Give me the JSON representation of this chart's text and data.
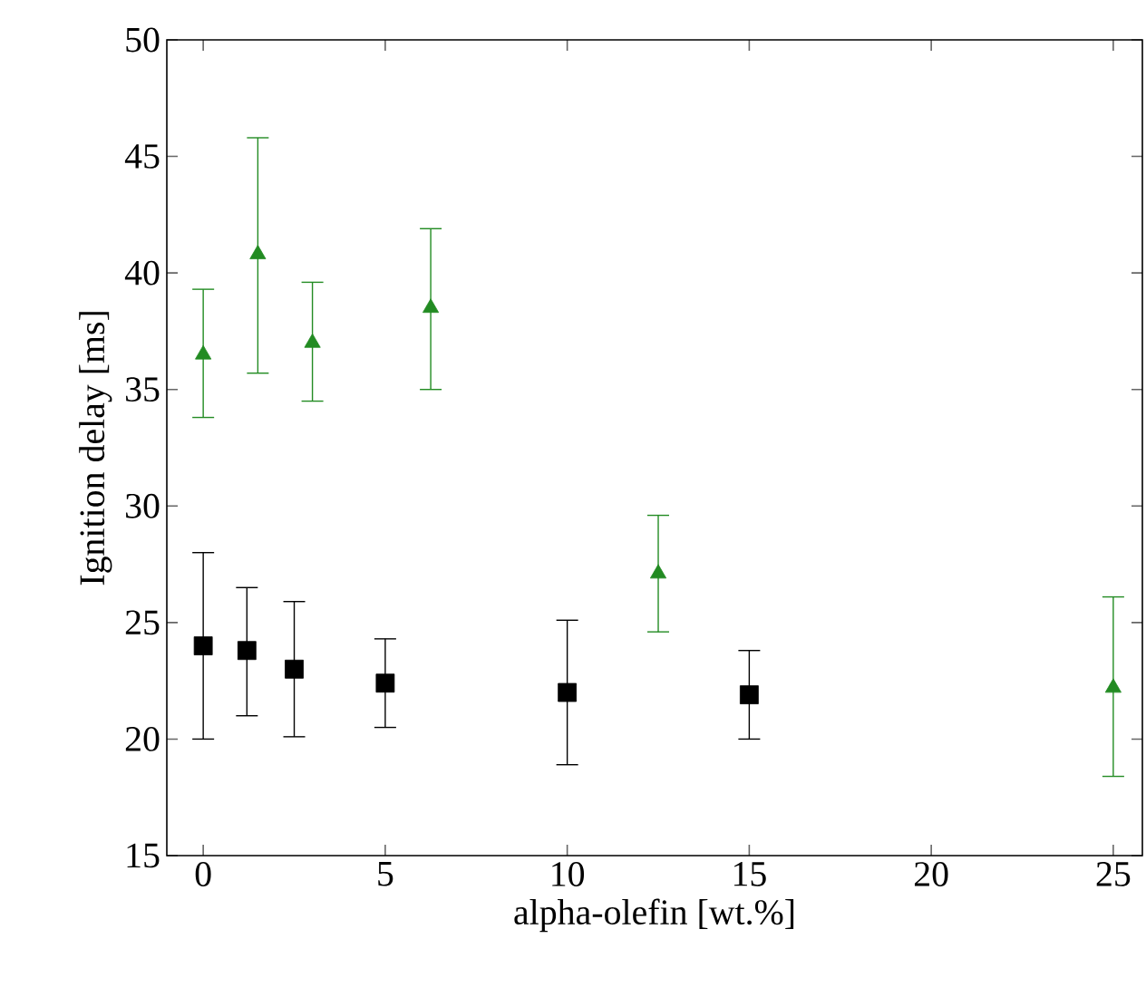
{
  "chart_data": {
    "type": "scatter",
    "xlabel": "alpha-olefin [wt.%]",
    "ylabel": "Ignition delay [ms]",
    "xlim": [
      -1,
      25.8
    ],
    "ylim": [
      15,
      50
    ],
    "xticks": [
      0,
      5,
      10,
      15,
      20,
      25
    ],
    "yticks": [
      15,
      20,
      25,
      30,
      35,
      40,
      45,
      50
    ],
    "grid": false,
    "series": [
      {
        "color": "#000000",
        "marker": "square",
        "x": [
          0,
          1.2,
          2.5,
          5,
          10,
          15
        ],
        "values": [
          24.0,
          23.8,
          23.0,
          22.4,
          22.0,
          21.9
        ],
        "errors": [
          [
            20.0,
            28.0
          ],
          [
            21.0,
            26.5
          ],
          [
            20.1,
            25.9
          ],
          [
            20.5,
            24.3
          ],
          [
            18.9,
            25.1
          ],
          [
            20.0,
            23.8
          ]
        ]
      },
      {
        "color": "#228b22",
        "marker": "triangle",
        "x": [
          0,
          1.5,
          3,
          6.25,
          12.5,
          25
        ],
        "values": [
          36.5,
          40.8,
          37.0,
          38.5,
          27.1,
          22.2
        ],
        "errors": [
          [
            33.8,
            39.3
          ],
          [
            35.7,
            45.8
          ],
          [
            34.5,
            39.6
          ],
          [
            35.0,
            41.9
          ],
          [
            24.6,
            29.6
          ],
          [
            18.4,
            26.1
          ]
        ]
      }
    ]
  }
}
